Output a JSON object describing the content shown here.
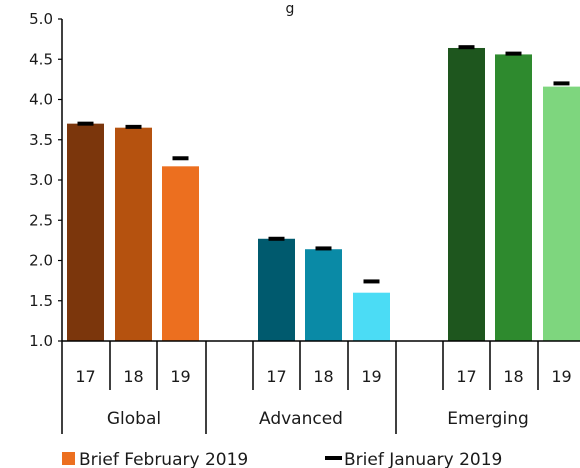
{
  "chart_data": {
    "type": "bar",
    "title_fragment": "g",
    "ylim": [
      1.0,
      5.0
    ],
    "yticks": [
      "1.0",
      "1.5",
      "2.0",
      "2.5",
      "3.0",
      "3.5",
      "4.0",
      "4.5",
      "5.0"
    ],
    "groups": [
      {
        "name": "Global",
        "years": [
          "17",
          "18",
          "19"
        ],
        "values": [
          3.7,
          3.65,
          3.17
        ],
        "markers": [
          3.7,
          3.66,
          3.27
        ],
        "colors": [
          "#7b360c",
          "#b5520f",
          "#ec6f1f"
        ]
      },
      {
        "name": "Advanced",
        "years": [
          "17",
          "18",
          "19"
        ],
        "values": [
          2.27,
          2.14,
          1.6
        ],
        "markers": [
          2.27,
          2.15,
          1.74
        ],
        "colors": [
          "#005a6e",
          "#0a8aa6",
          "#4bdcf5"
        ]
      },
      {
        "name": "Emerging",
        "years": [
          "17",
          "18",
          "19"
        ],
        "values": [
          4.64,
          4.56,
          4.16
        ],
        "markers": [
          4.65,
          4.57,
          4.2
        ],
        "colors": [
          "#1e561e",
          "#2e8a2e",
          "#7ed67e"
        ]
      }
    ],
    "legend": {
      "bar_label": "Brief February 2019",
      "bar_color": "#ec6f1f",
      "marker_label": "Brief January 2019",
      "marker_color": "#000000",
      "placement": "bottom"
    }
  }
}
